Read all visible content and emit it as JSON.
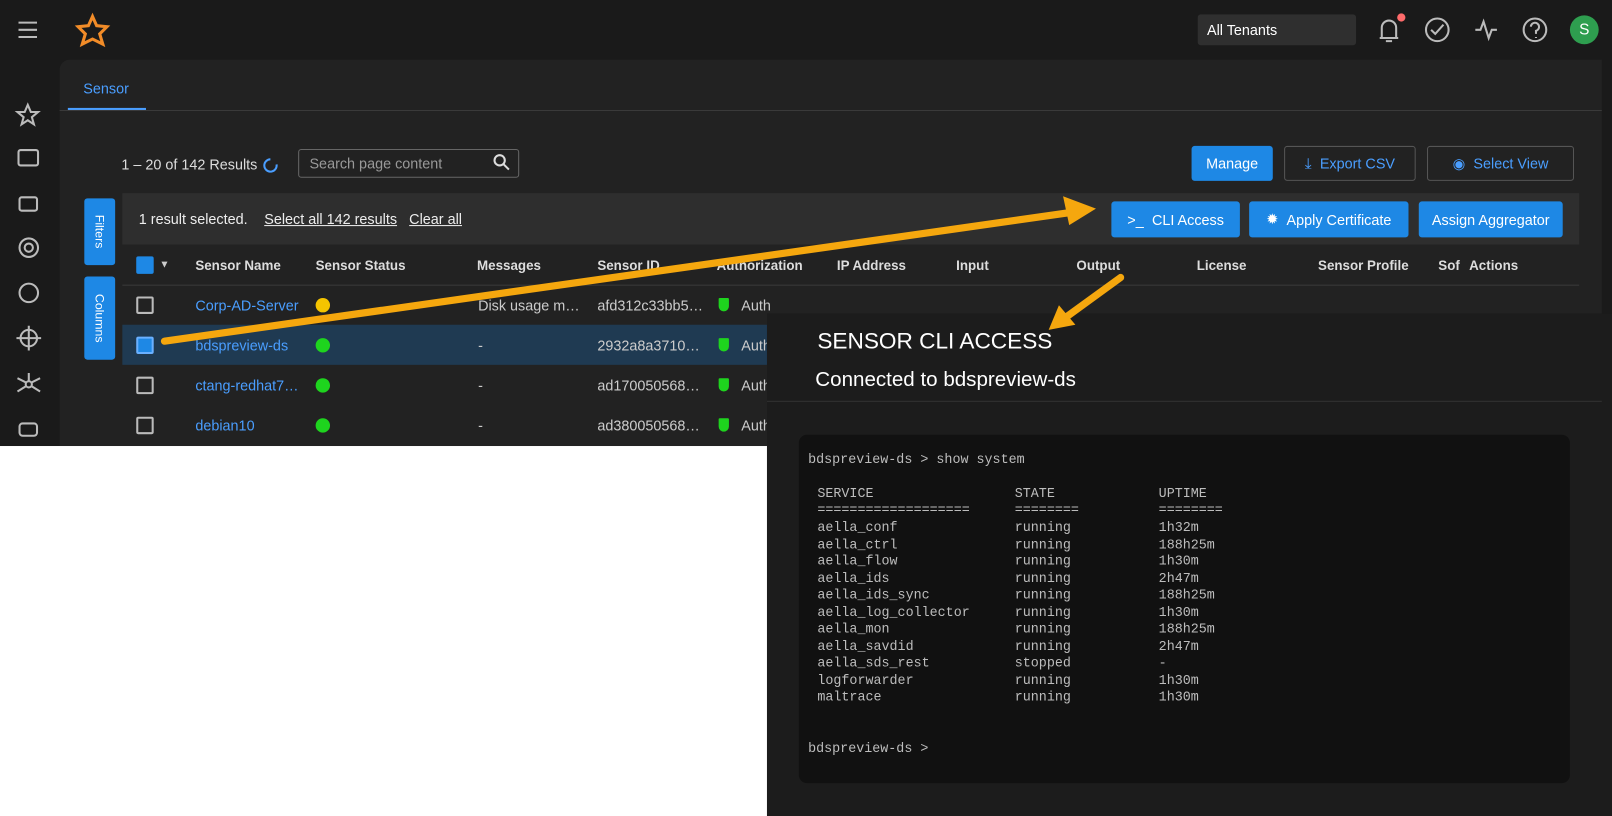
{
  "topbar": {
    "tenant": "All Tenants",
    "avatar": "S"
  },
  "tabs": [
    "Sensor"
  ],
  "toolbar": {
    "results": "1 – 20 of 142 Results",
    "search_placeholder": "Search page content",
    "buttons": [
      "Manage",
      "Export CSV",
      "Select View"
    ]
  },
  "side_tabs": [
    "Filters",
    "Columns"
  ],
  "selection_bar": {
    "selected": "1 result selected.",
    "select_all": "Select all 142 results",
    "clear": "Clear all",
    "actions": [
      "CLI Access",
      "Apply Certificate",
      "Assign Aggregator"
    ]
  },
  "table": {
    "columns": [
      "Sensor Name",
      "Sensor Status",
      "Messages",
      "Sensor ID",
      "Authorization",
      "IP Address",
      "Input",
      "Output",
      "License",
      "Sensor Profile",
      "Sof",
      "Actions"
    ],
    "rows": [
      {
        "name": "Corp-AD-Server",
        "status_color": "#f5c400",
        "message": "Disk usage m…",
        "id": "afd312c33bb5…",
        "auth": "Auth",
        "selected": false
      },
      {
        "name": "bdspreview-ds",
        "status_color": "#1ed41e",
        "message": "-",
        "id": "2932a8a3710…",
        "auth": "Auth",
        "selected": true
      },
      {
        "name": "ctang-redhat7…",
        "status_color": "#1ed41e",
        "message": "-",
        "id": "ad170050568…",
        "auth": "Auth",
        "selected": false
      },
      {
        "name": "debian10",
        "status_color": "#1ed41e",
        "message": "-",
        "id": "ad380050568…",
        "auth": "Auth",
        "selected": false
      }
    ]
  },
  "panel": {
    "title": "SENSOR CLI ACCESS",
    "subtitle": "Connected to bdspreview-ds",
    "terminal": {
      "command": "bdspreview-ds > show system",
      "header": [
        "SERVICE",
        "STATE",
        "UPTIME"
      ],
      "separator": [
        "===================",
        "========",
        "========"
      ],
      "rows": [
        [
          "aella_conf",
          "running",
          "1h32m"
        ],
        [
          "aella_ctrl",
          "running",
          "188h25m"
        ],
        [
          "aella_flow",
          "running",
          "1h30m"
        ],
        [
          "aella_ids",
          "running",
          "2h47m"
        ],
        [
          "aella_ids_sync",
          "running",
          "188h25m"
        ],
        [
          "aella_log_collector",
          "running",
          "1h30m"
        ],
        [
          "aella_mon",
          "running",
          "188h25m"
        ],
        [
          "aella_savdid",
          "running",
          "2h47m"
        ],
        [
          "aella_sds_rest",
          "stopped",
          "-"
        ],
        [
          "logforwarder",
          "running",
          "1h30m"
        ],
        [
          "maltrace",
          "running",
          "1h30m"
        ]
      ],
      "prompt": "bdspreview-ds >"
    }
  }
}
